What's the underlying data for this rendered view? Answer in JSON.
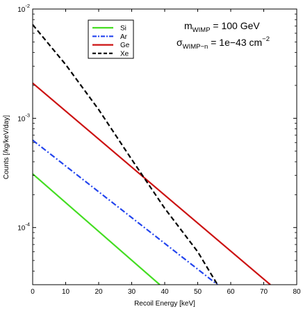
{
  "chart_data": {
    "type": "line",
    "title": "",
    "xlabel": "Recoil Energy [keV]",
    "ylabel": "Counts [/kg/keV/day]",
    "xlim": [
      0,
      80
    ],
    "ylim": [
      3e-05,
      0.01
    ],
    "yscale": "log",
    "xticks": [
      "0",
      "10",
      "20",
      "30",
      "40",
      "50",
      "60",
      "70",
      "80"
    ],
    "yticks": [
      {
        "base": "10",
        "exp": "-4",
        "value": 0.0001
      },
      {
        "base": "10",
        "exp": "-3",
        "value": 0.001
      },
      {
        "base": "10",
        "exp": "-2",
        "value": 0.01
      }
    ],
    "grid": false,
    "legend_position": "top-left",
    "series": [
      {
        "name": "Si",
        "color": "#44dd22",
        "dash": "solid",
        "x": [
          0,
          38.5
        ],
        "y": [
          0.00031,
          3e-05
        ]
      },
      {
        "name": "Ar",
        "color": "#2244ee",
        "dash": "dash-dot",
        "x": [
          0,
          56
        ],
        "y": [
          0.00063,
          3e-05
        ]
      },
      {
        "name": "Ge",
        "color": "#cc1111",
        "dash": "solid",
        "x": [
          0,
          72
        ],
        "y": [
          0.0021,
          3e-05
        ]
      },
      {
        "name": "Xe",
        "color": "#000000",
        "dash": "dashed",
        "x": [
          0,
          10,
          20,
          30,
          40,
          50,
          56
        ],
        "y": [
          0.0072,
          0.0031,
          0.0012,
          0.00042,
          0.00015,
          6e-05,
          3e-05
        ]
      }
    ],
    "annotation": {
      "line1_main": "m",
      "line1_sub": "WIMP",
      "line1_rest": " = 100 GeV",
      "line2_main": "σ",
      "line2_sub": "WIMP−n",
      "line2_rest": " = 1e−43 cm",
      "line2_sup": "−2"
    }
  }
}
